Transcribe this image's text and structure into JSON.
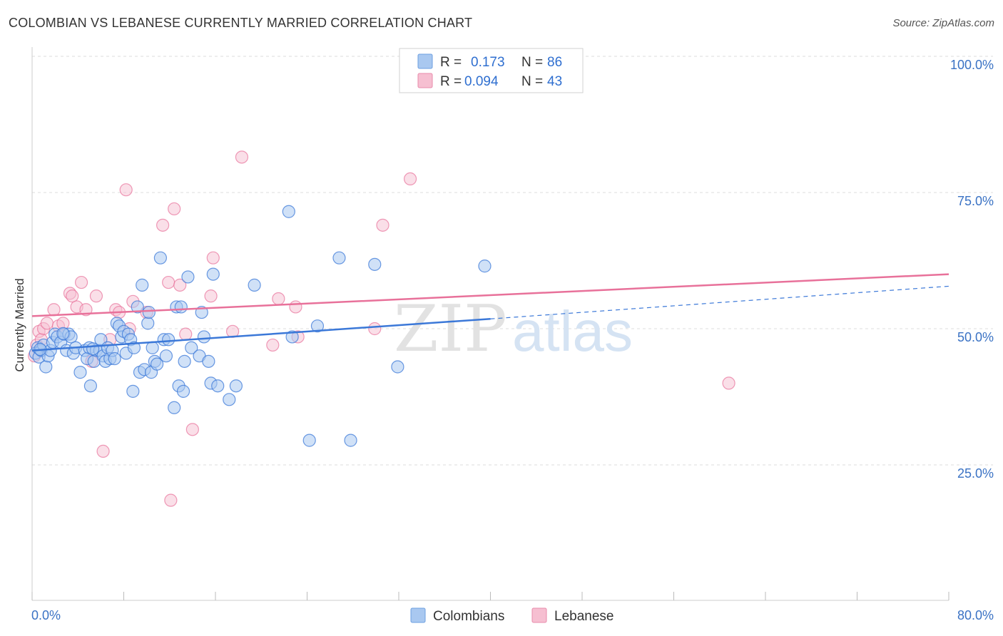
{
  "title": "COLOMBIAN VS LEBANESE CURRENTLY MARRIED CORRELATION CHART",
  "source": "Source: ZipAtlas.com",
  "colors": {
    "blue": "#3b78d8",
    "blue_fill": "#a9c8f0",
    "pink": "#e8719a",
    "pink_fill": "#f6bfd1",
    "grid": "#dddddd",
    "tick_text": "#3a72c4"
  },
  "legend": {
    "rows": [
      {
        "r_label": "R =",
        "r_value": "0.173",
        "n_label": "N =",
        "n_value": "86"
      },
      {
        "r_label": "R =",
        "r_value": "0.094",
        "n_label": "N =",
        "n_value": "43"
      }
    ]
  },
  "watermark": {
    "zip": "ZIP",
    "atlas": "atlas"
  },
  "chart_data": {
    "type": "scatter",
    "title": "COLOMBIAN VS LEBANESE CURRENTLY MARRIED CORRELATION CHART",
    "xlabel": "",
    "ylabel": "Currently Married",
    "xlim": [
      0,
      80
    ],
    "ylim": [
      0,
      103
    ],
    "x_tick_labels": [
      "0.0%",
      "80.0%"
    ],
    "y_ticks": [
      25,
      50,
      75,
      100
    ],
    "y_tick_labels": [
      "25.0%",
      "50.0%",
      "75.0%",
      "100.0%"
    ],
    "legend_position": "top-center",
    "series": [
      {
        "name": "Colombians",
        "r": 0.173,
        "n": 86,
        "trend": {
          "x0": 0,
          "y0": 46.0,
          "x1": 40,
          "y1": 51.8,
          "dash_to_x": 80,
          "dash_to_y": 57.8
        },
        "points": [
          [
            0.3,
            45.5
          ],
          [
            0.5,
            46.5
          ],
          [
            0.6,
            44.8
          ],
          [
            0.8,
            46.0
          ],
          [
            1.0,
            47.0
          ],
          [
            1.2,
            43.0
          ],
          [
            1.4,
            45.0
          ],
          [
            1.6,
            46.0
          ],
          [
            1.8,
            47.5
          ],
          [
            2.0,
            49.0
          ],
          [
            2.2,
            48.5
          ],
          [
            2.5,
            47.5
          ],
          [
            2.8,
            49.0
          ],
          [
            3.0,
            46.0
          ],
          [
            3.2,
            49.0
          ],
          [
            3.4,
            48.5
          ],
          [
            3.6,
            45.5
          ],
          [
            3.8,
            46.5
          ],
          [
            4.2,
            42.0
          ],
          [
            4.6,
            46.0
          ],
          [
            4.8,
            44.5
          ],
          [
            5.0,
            46.5
          ],
          [
            5.1,
            39.5
          ],
          [
            5.4,
            44.0
          ],
          [
            5.6,
            46.0
          ],
          [
            5.9,
            46.0
          ],
          [
            6.0,
            48.0
          ],
          [
            6.2,
            45.0
          ],
          [
            6.4,
            44.0
          ],
          [
            6.6,
            46.5
          ],
          [
            6.8,
            44.5
          ],
          [
            7.0,
            46.0
          ],
          [
            7.2,
            44.5
          ],
          [
            7.4,
            51.0
          ],
          [
            7.6,
            50.5
          ],
          [
            7.8,
            48.5
          ],
          [
            8.0,
            49.5
          ],
          [
            8.2,
            45.5
          ],
          [
            8.4,
            49.0
          ],
          [
            8.6,
            48.0
          ],
          [
            8.8,
            38.5
          ],
          [
            8.9,
            46.5
          ],
          [
            9.2,
            54.0
          ],
          [
            9.4,
            42.0
          ],
          [
            9.6,
            58.0
          ],
          [
            9.8,
            42.5
          ],
          [
            10.1,
            51.0
          ],
          [
            10.2,
            53.0
          ],
          [
            10.4,
            42.0
          ],
          [
            10.5,
            46.5
          ],
          [
            10.7,
            44.0
          ],
          [
            10.9,
            43.5
          ],
          [
            11.2,
            63.0
          ],
          [
            11.5,
            48.0
          ],
          [
            11.7,
            45.0
          ],
          [
            11.9,
            48.0
          ],
          [
            12.4,
            35.5
          ],
          [
            12.6,
            54.0
          ],
          [
            12.8,
            39.5
          ],
          [
            13.0,
            54.0
          ],
          [
            13.2,
            38.5
          ],
          [
            13.3,
            44.0
          ],
          [
            13.6,
            59.5
          ],
          [
            13.9,
            46.5
          ],
          [
            14.6,
            45.0
          ],
          [
            14.8,
            53.0
          ],
          [
            15.0,
            48.5
          ],
          [
            15.4,
            44.0
          ],
          [
            15.6,
            40.0
          ],
          [
            15.8,
            60.0
          ],
          [
            16.2,
            39.5
          ],
          [
            17.2,
            37.0
          ],
          [
            17.8,
            39.5
          ],
          [
            19.4,
            58.0
          ],
          [
            22.4,
            71.5
          ],
          [
            22.7,
            48.5
          ],
          [
            24.2,
            29.5
          ],
          [
            24.9,
            50.5
          ],
          [
            26.8,
            63.0
          ],
          [
            27.8,
            29.5
          ],
          [
            29.9,
            61.8
          ],
          [
            31.9,
            43.0
          ],
          [
            39.5,
            61.5
          ],
          [
            0.7,
            46.2
          ],
          [
            2.7,
            49.1
          ],
          [
            5.3,
            46.3
          ]
        ]
      },
      {
        "name": "Lebanese",
        "r": 0.094,
        "n": 43,
        "trend": {
          "x0": 0,
          "y0": 52.3,
          "x1": 80,
          "y1": 60.0
        },
        "points": [
          [
            0.2,
            45.0
          ],
          [
            0.4,
            47.0
          ],
          [
            0.6,
            49.5
          ],
          [
            0.8,
            48.0
          ],
          [
            1.0,
            50.0
          ],
          [
            1.3,
            51.0
          ],
          [
            1.9,
            53.5
          ],
          [
            2.3,
            50.5
          ],
          [
            2.7,
            51.0
          ],
          [
            3.3,
            56.5
          ],
          [
            3.5,
            56.0
          ],
          [
            3.9,
            54.0
          ],
          [
            4.3,
            58.5
          ],
          [
            4.7,
            53.5
          ],
          [
            5.2,
            44.0
          ],
          [
            5.6,
            56.0
          ],
          [
            6.2,
            27.5
          ],
          [
            6.8,
            48.0
          ],
          [
            7.3,
            53.5
          ],
          [
            7.6,
            53.0
          ],
          [
            8.2,
            75.5
          ],
          [
            8.5,
            50.0
          ],
          [
            8.8,
            55.0
          ],
          [
            10.0,
            53.0
          ],
          [
            11.4,
            69.0
          ],
          [
            11.9,
            58.5
          ],
          [
            12.1,
            18.5
          ],
          [
            12.4,
            72.0
          ],
          [
            12.9,
            58.0
          ],
          [
            13.4,
            49.0
          ],
          [
            14.0,
            31.5
          ],
          [
            15.6,
            56.0
          ],
          [
            15.8,
            63.0
          ],
          [
            17.5,
            49.5
          ],
          [
            18.3,
            81.5
          ],
          [
            21.0,
            47.0
          ],
          [
            21.5,
            55.5
          ],
          [
            23.0,
            54.0
          ],
          [
            23.2,
            48.5
          ],
          [
            29.9,
            50.0
          ],
          [
            30.6,
            69.0
          ],
          [
            33.0,
            77.5
          ],
          [
            60.8,
            40.0
          ]
        ]
      }
    ]
  }
}
